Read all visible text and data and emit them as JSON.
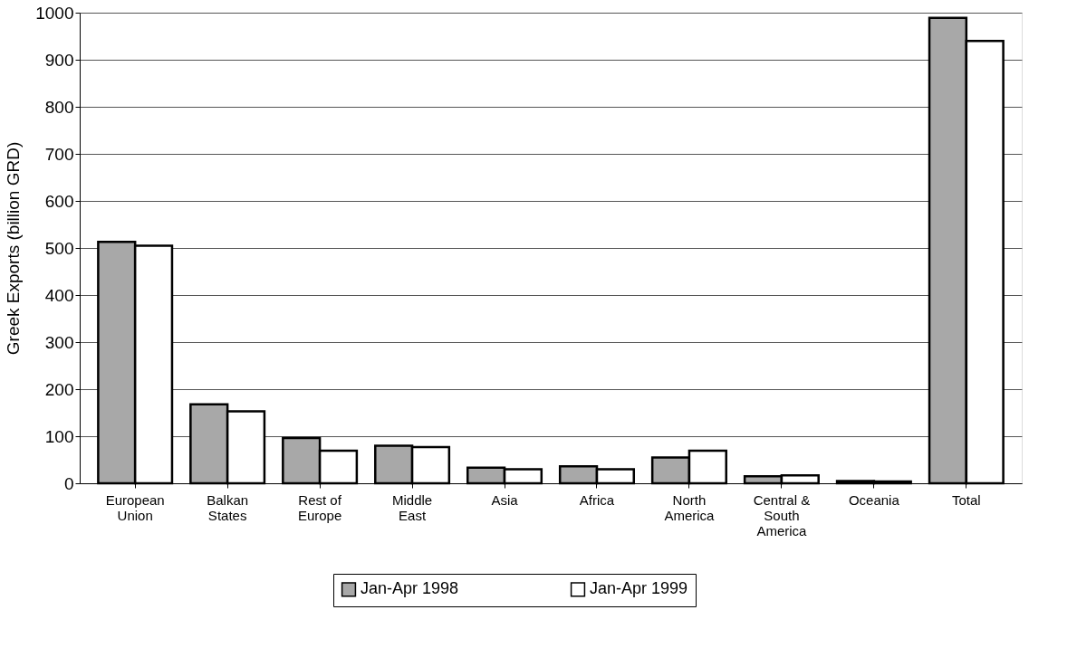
{
  "chart_data": {
    "type": "bar",
    "ylabel": "Greek Exports (billion GRD)",
    "categories": [
      "European Union",
      "Balkan States",
      "Rest of Europe",
      "Middle East",
      "Asia",
      "Africa",
      "North America",
      "Central & South America",
      "Oceania",
      "Total"
    ],
    "series": [
      {
        "name": "Jan-Apr 1998",
        "color": "#a8a8a8",
        "values": [
          513,
          168,
          96,
          80,
          33,
          36,
          55,
          15,
          5,
          989
        ]
      },
      {
        "name": "Jan-Apr 1999",
        "color": "#ffffff",
        "values": [
          505,
          153,
          69,
          77,
          30,
          30,
          69,
          17,
          4,
          940
        ]
      }
    ],
    "ylim": [
      0,
      1000
    ],
    "yticks": [
      0,
      100,
      200,
      300,
      400,
      500,
      600,
      700,
      800,
      900,
      1000
    ],
    "grid": "y",
    "legend": "bottom"
  }
}
